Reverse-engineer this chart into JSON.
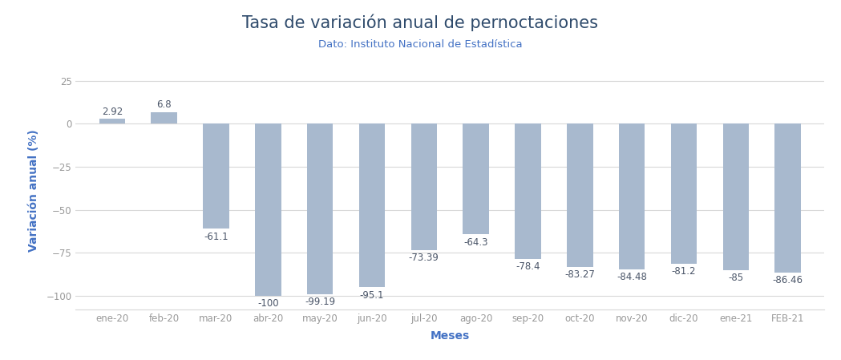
{
  "categories": [
    "ene-20",
    "feb-20",
    "mar-20",
    "abr-20",
    "may-20",
    "jun-20",
    "jul-20",
    "ago-20",
    "sep-20",
    "oct-20",
    "nov-20",
    "dic-20",
    "ene-21",
    "FEB-21"
  ],
  "values": [
    2.92,
    6.8,
    -61.1,
    -100,
    -99.19,
    -95.1,
    -73.39,
    -64.3,
    -78.4,
    -83.27,
    -84.48,
    -81.2,
    -85,
    -86.46
  ],
  "bar_color": "#a8b9ce",
  "title": "Tasa de variación anual de pernoctaciones",
  "subtitle": "Dato: Instituto Nacional de Estadística",
  "xlabel": "Meses",
  "ylabel": "Variación anual (%)",
  "ylim": [
    -108,
    30
  ],
  "yticks": [
    -100,
    -75,
    -50,
    -25,
    0,
    25
  ],
  "title_color": "#2e4a6b",
  "subtitle_color": "#4472c4",
  "axis_label_color": "#4a5568",
  "tick_color": "#999999",
  "grid_color": "#d8d8d8",
  "background_color": "#ffffff",
  "title_fontsize": 15,
  "subtitle_fontsize": 9.5,
  "label_fontsize": 8.5,
  "axis_fontsize": 10,
  "bar_width": 0.5
}
